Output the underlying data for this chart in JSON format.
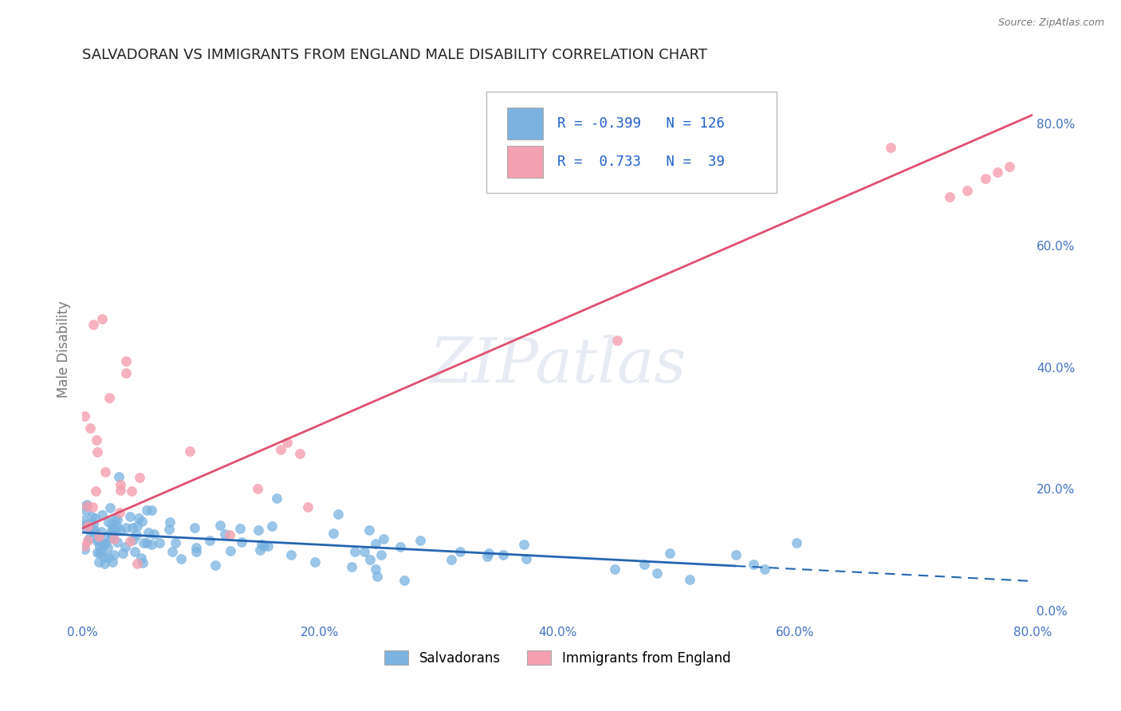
{
  "title": "SALVADORAN VS IMMIGRANTS FROM ENGLAND MALE DISABILITY CORRELATION CHART",
  "source": "Source: ZipAtlas.com",
  "ylabel": "Male Disability",
  "xlim": [
    0.0,
    0.8
  ],
  "ylim": [
    -0.02,
    0.88
  ],
  "right_yticks": [
    0.0,
    0.2,
    0.4,
    0.6,
    0.8
  ],
  "right_yticklabels": [
    "0.0%",
    "20.0%",
    "40.0%",
    "60.0%",
    "80.0%"
  ],
  "xticks": [
    0.0,
    0.2,
    0.4,
    0.6,
    0.8
  ],
  "xticklabels": [
    "0.0%",
    "20.0%",
    "40.0%",
    "60.0%",
    "80.0%"
  ],
  "salvadoran_color": "#7ab3e0",
  "england_color": "#f4a0b0",
  "salvadoran_R": -0.399,
  "salvadoran_N": 126,
  "england_R": 0.733,
  "england_N": 39,
  "legend_label_1": "Salvadorans",
  "legend_label_2": "Immigrants from England",
  "watermark": "ZIPatlas",
  "background_color": "#ffffff",
  "grid_color": "#cccccc",
  "tick_color": "#4472c4",
  "title_fontsize": 13,
  "slope_sal": -0.1,
  "intercept_sal": 0.128,
  "slope_eng": 0.85,
  "intercept_eng": 0.135
}
